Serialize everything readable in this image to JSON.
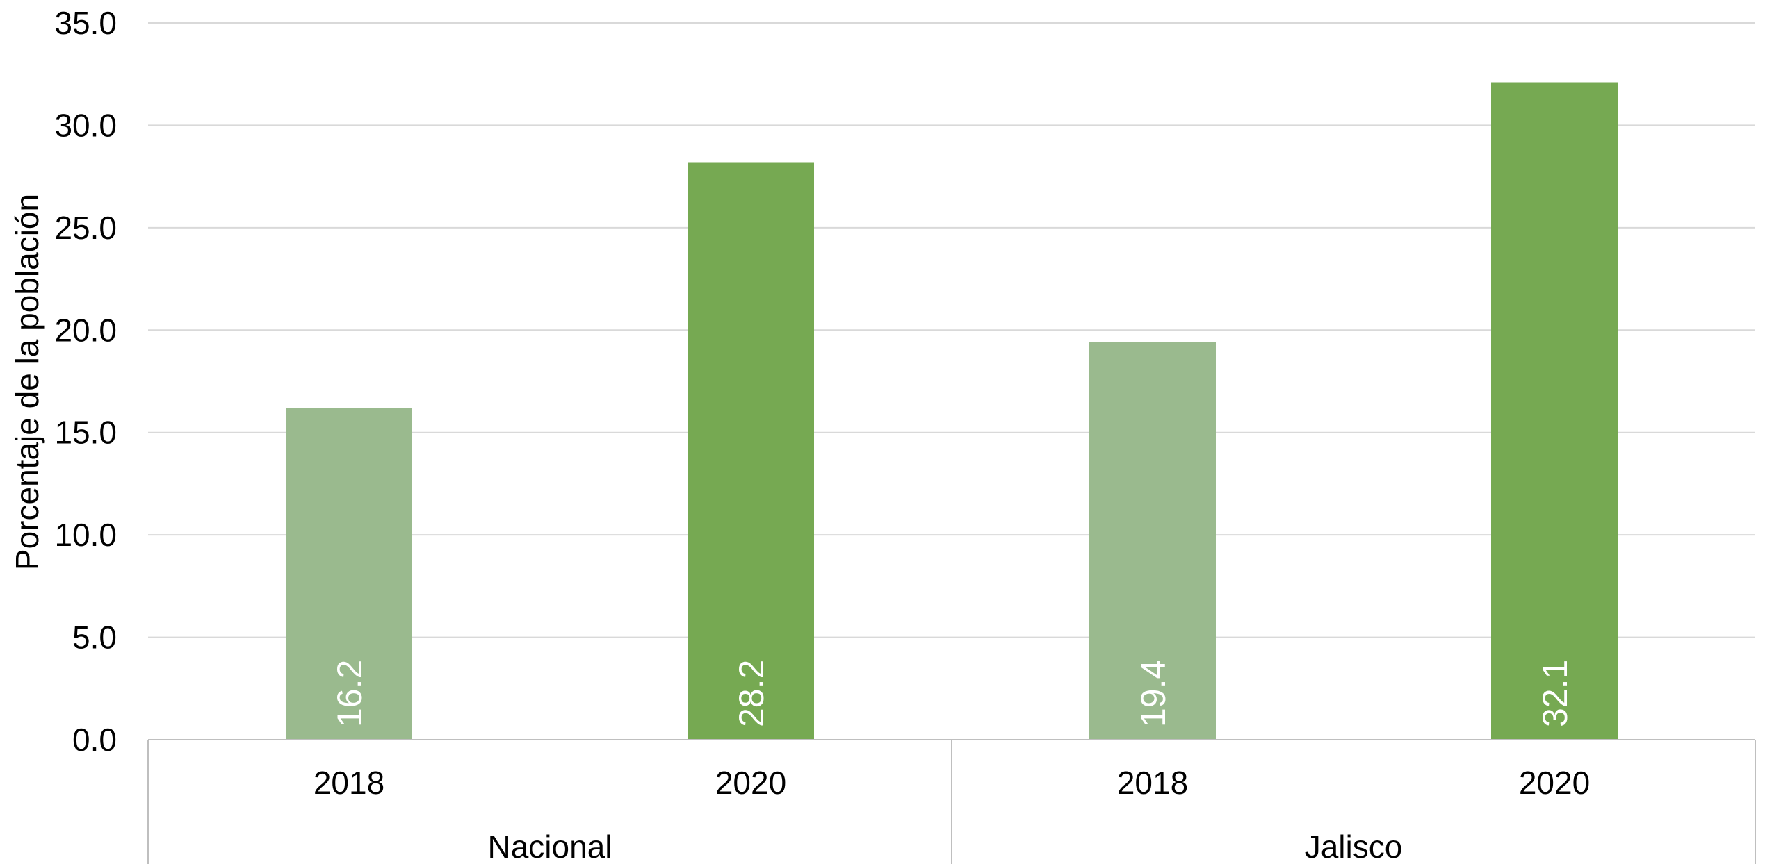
{
  "chart_data": {
    "type": "bar",
    "ylabel": "Porcentaje de la población",
    "ylim": [
      0,
      35
    ],
    "ystep": 5,
    "grid": true,
    "groups": [
      {
        "label": "Nacional",
        "categories": [
          "2018",
          "2020"
        ],
        "values": [
          16.2,
          28.2
        ]
      },
      {
        "label": "Jalisco",
        "categories": [
          "2018",
          "2020"
        ],
        "values": [
          19.4,
          32.1
        ]
      }
    ],
    "data_labels": [
      "16.2",
      "28.2",
      "19.4",
      "32.1"
    ],
    "y_tick_labels": [
      "0.0",
      "5.0",
      "10.0",
      "15.0",
      "20.0",
      "25.0",
      "30.0",
      "35.0"
    ],
    "colors": {
      "year_2018": "#9aba8e",
      "year_2020": "#76a952",
      "gridline": "#d9d9d9",
      "axis": "#bfbfbf"
    }
  }
}
